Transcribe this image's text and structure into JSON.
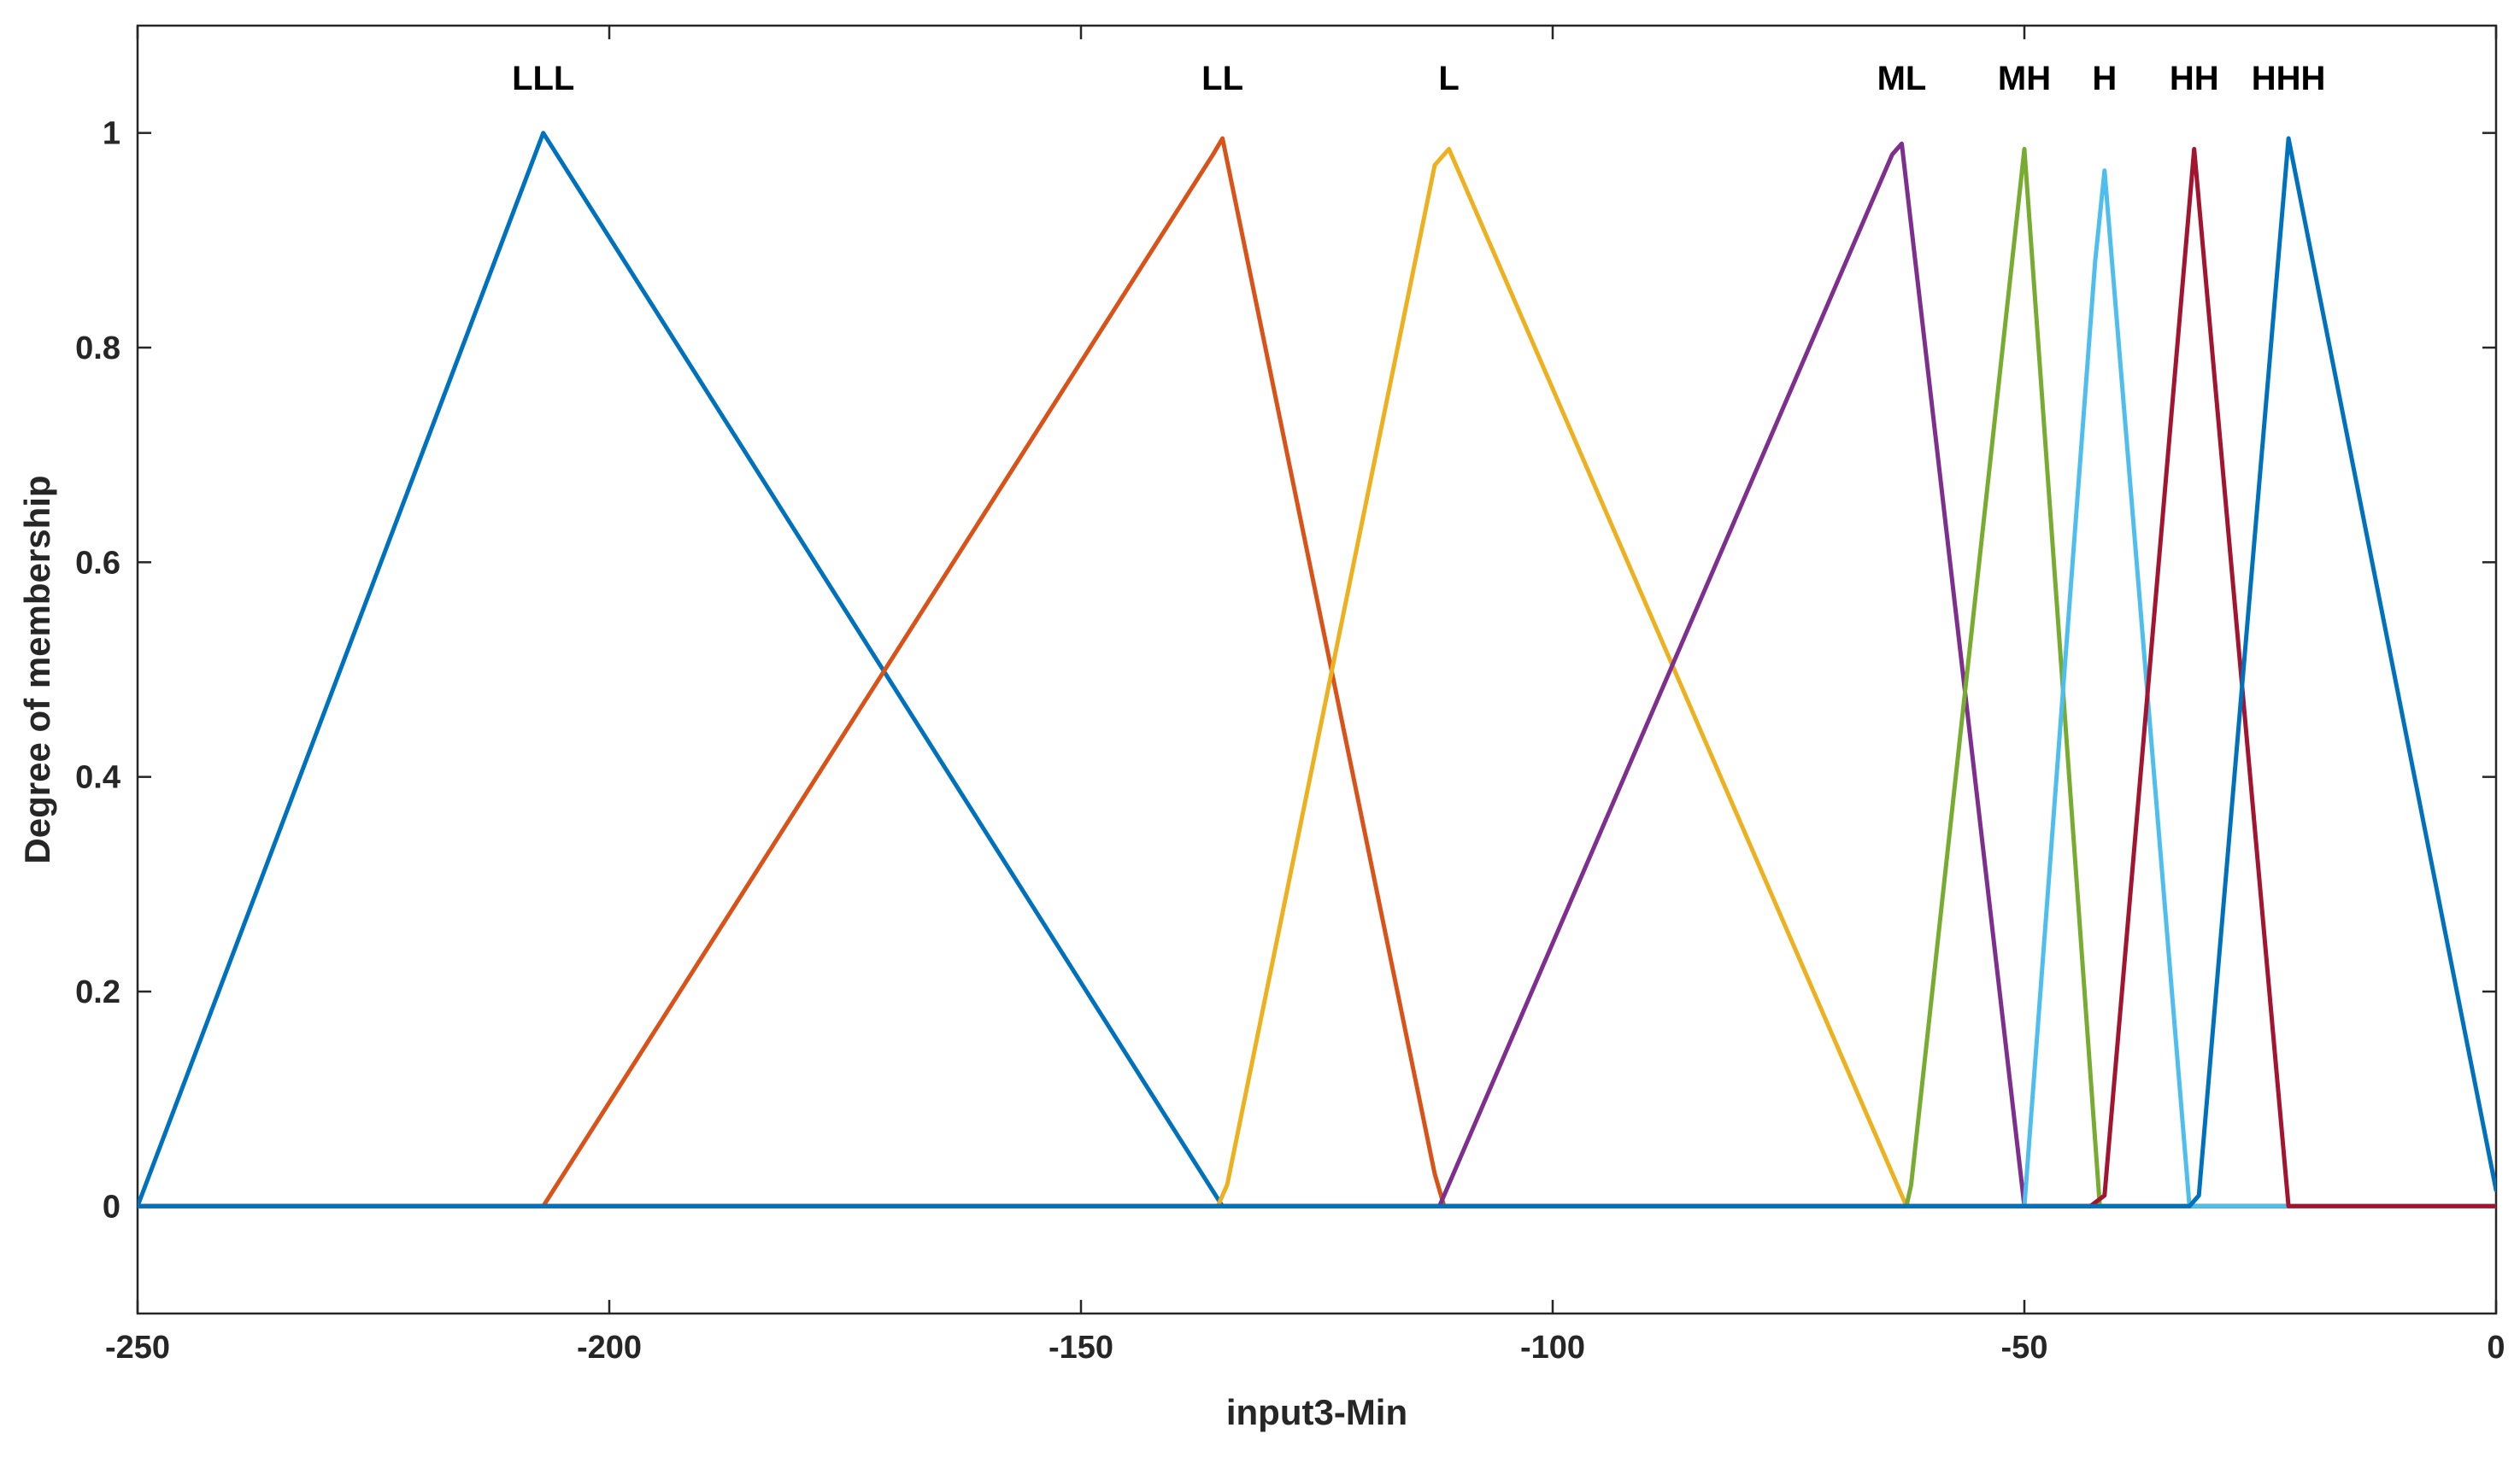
{
  "chart_data": {
    "type": "line",
    "title": "",
    "xlabel": "input3-Min",
    "ylabel": "Degree of membership",
    "xlim": [
      -250,
      0
    ],
    "ylim": [
      -0.1,
      1.1
    ],
    "x_ticks": [
      -250,
      -200,
      -150,
      -100,
      -50,
      0
    ],
    "y_ticks": [
      0,
      0.2,
      0.4,
      0.6,
      0.8,
      1
    ],
    "x_tick_labels": [
      "-250",
      "-200",
      "-150",
      "-100",
      "-50",
      "0"
    ],
    "y_tick_labels": [
      "0",
      "0.2",
      "0.4",
      "0.6",
      "0.8",
      "1"
    ],
    "grid": false,
    "series": [
      {
        "name": "LLL",
        "color": "#0072BD",
        "x": [
          -250,
          -207,
          -135,
          0
        ],
        "y": [
          0,
          1,
          0,
          0
        ],
        "label_pos": [
          -207,
          1.05
        ]
      },
      {
        "name": "LL",
        "color": "#D95319",
        "x": [
          -250,
          -207,
          -136,
          -135,
          -112.5,
          -111.5,
          0
        ],
        "y": [
          0,
          0,
          0.98,
          0.995,
          0.03,
          0,
          0
        ],
        "label_pos": [
          -135,
          1.05
        ]
      },
      {
        "name": "L",
        "color": "#EDB120",
        "x": [
          -250,
          -135.5,
          -134.5,
          -112.5,
          -111,
          -62.5,
          0
        ],
        "y": [
          0,
          0,
          0.02,
          0.97,
          0.985,
          0,
          0
        ],
        "label_pos": [
          -111,
          1.05
        ]
      },
      {
        "name": "ML",
        "color": "#7E2F8E",
        "x": [
          -250,
          -112,
          -64,
          -63,
          -50,
          0
        ],
        "y": [
          0,
          0,
          0.98,
          0.99,
          0,
          0
        ],
        "label_pos": [
          -63,
          1.05
        ]
      },
      {
        "name": "MH",
        "color": "#77AC30",
        "x": [
          -250,
          -62.5,
          -62,
          -50,
          -42,
          0
        ],
        "y": [
          0,
          0,
          0.02,
          0.985,
          0,
          0
        ],
        "label_pos": [
          -50,
          1.05
        ]
      },
      {
        "name": "H",
        "color": "#4DBEEE",
        "x": [
          -250,
          -50,
          -42.5,
          -41.5,
          -32.5,
          0
        ],
        "y": [
          0,
          0,
          0.88,
          0.965,
          0,
          0
        ],
        "label_pos": [
          -41.5,
          1.05
        ]
      },
      {
        "name": "HH",
        "color": "#A2142F",
        "x": [
          -250,
          -43,
          -41.5,
          -32,
          -22,
          0
        ],
        "y": [
          0,
          0,
          0.01,
          0.985,
          0,
          0
        ],
        "label_pos": [
          -32,
          1.05
        ]
      },
      {
        "name": "HHH",
        "color": "#0072BD",
        "x": [
          -250,
          -32.5,
          -31.5,
          -22,
          0
        ],
        "y": [
          0,
          0,
          0.01,
          0.995,
          0.015
        ],
        "label_pos": [
          -22,
          1.05
        ]
      }
    ]
  }
}
